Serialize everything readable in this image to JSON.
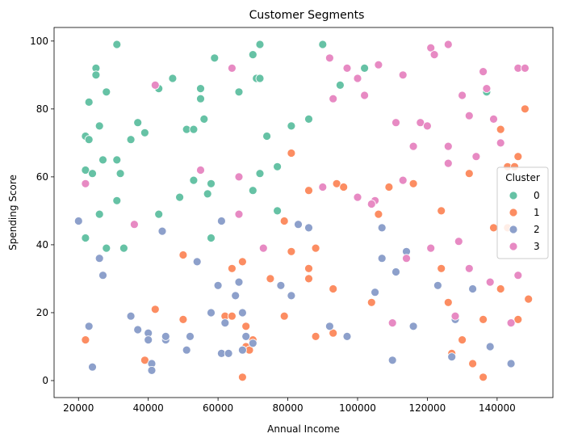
{
  "chart_data": {
    "type": "scatter",
    "title": "Customer Segments",
    "xlabel": "Annual Income",
    "ylabel": "Spending Score",
    "xlim": [
      13000,
      156000
    ],
    "ylim": [
      -5,
      104
    ],
    "xticks": [
      20000,
      40000,
      60000,
      80000,
      100000,
      120000,
      140000
    ],
    "xtick_labels": [
      "20000",
      "40000",
      "60000",
      "80000",
      "100000",
      "120000",
      "140000"
    ],
    "yticks": [
      0,
      20,
      40,
      60,
      80,
      100
    ],
    "ytick_labels": [
      "0",
      "20",
      "40",
      "60",
      "80",
      "100"
    ],
    "grid": false,
    "legend": {
      "title": "Cluster",
      "placement": "right",
      "entries": [
        "0",
        "1",
        "2",
        "3"
      ]
    },
    "series": [
      {
        "name": "0",
        "color": "#66c2a5",
        "points": [
          [
            31000,
            99
          ],
          [
            72000,
            99
          ],
          [
            90000,
            99
          ],
          [
            70000,
            96
          ],
          [
            59000,
            95
          ],
          [
            25000,
            92
          ],
          [
            25000,
            90
          ],
          [
            71000,
            89
          ],
          [
            72000,
            89
          ],
          [
            47000,
            89
          ],
          [
            43000,
            86
          ],
          [
            55000,
            86
          ],
          [
            95000,
            87
          ],
          [
            137000,
            85
          ],
          [
            28000,
            85
          ],
          [
            66000,
            85
          ],
          [
            55000,
            83
          ],
          [
            23000,
            82
          ],
          [
            56000,
            77
          ],
          [
            86000,
            77
          ],
          [
            37000,
            76
          ],
          [
            26000,
            75
          ],
          [
            81000,
            75
          ],
          [
            51000,
            74
          ],
          [
            53000,
            74
          ],
          [
            39000,
            73
          ],
          [
            22000,
            72
          ],
          [
            74000,
            72
          ],
          [
            35000,
            71
          ],
          [
            23000,
            71
          ],
          [
            27000,
            65
          ],
          [
            31000,
            65
          ],
          [
            77000,
            63
          ],
          [
            22000,
            62
          ],
          [
            24000,
            61
          ],
          [
            32000,
            61
          ],
          [
            72000,
            61
          ],
          [
            53000,
            59
          ],
          [
            58000,
            58
          ],
          [
            22000,
            58
          ],
          [
            70000,
            56
          ],
          [
            57000,
            55
          ],
          [
            49000,
            54
          ],
          [
            31000,
            53
          ],
          [
            77000,
            50
          ],
          [
            26000,
            49
          ],
          [
            43000,
            49
          ],
          [
            22000,
            42
          ],
          [
            58000,
            42
          ],
          [
            28000,
            39
          ],
          [
            33000,
            39
          ],
          [
            102000,
            92
          ]
        ]
      },
      {
        "name": "1",
        "color": "#fc8d62",
        "points": [
          [
            148000,
            80
          ],
          [
            141000,
            74
          ],
          [
            81000,
            67
          ],
          [
            146000,
            66
          ],
          [
            143000,
            63
          ],
          [
            145000,
            63
          ],
          [
            132000,
            61
          ],
          [
            94000,
            58
          ],
          [
            116000,
            58
          ],
          [
            96000,
            57
          ],
          [
            109000,
            57
          ],
          [
            86000,
            56
          ],
          [
            106000,
            49
          ],
          [
            124000,
            50
          ],
          [
            79000,
            47
          ],
          [
            139000,
            45
          ],
          [
            143000,
            45
          ],
          [
            88000,
            39
          ],
          [
            81000,
            38
          ],
          [
            50000,
            37
          ],
          [
            67000,
            35
          ],
          [
            64000,
            33
          ],
          [
            86000,
            33
          ],
          [
            124000,
            33
          ],
          [
            75000,
            30
          ],
          [
            86000,
            30
          ],
          [
            93000,
            27
          ],
          [
            141000,
            27
          ],
          [
            104000,
            23
          ],
          [
            126000,
            23
          ],
          [
            149000,
            24
          ],
          [
            42000,
            21
          ],
          [
            79000,
            19
          ],
          [
            62000,
            19
          ],
          [
            64000,
            19
          ],
          [
            50000,
            18
          ],
          [
            136000,
            18
          ],
          [
            146000,
            18
          ],
          [
            110000,
            17
          ],
          [
            68000,
            16
          ],
          [
            88000,
            13
          ],
          [
            93000,
            14
          ],
          [
            130000,
            12
          ],
          [
            22000,
            12
          ],
          [
            70000,
            12
          ],
          [
            68000,
            10
          ],
          [
            69000,
            9
          ],
          [
            127000,
            8
          ],
          [
            39000,
            6
          ],
          [
            133000,
            5
          ],
          [
            67000,
            1
          ],
          [
            136000,
            1
          ]
        ]
      },
      {
        "name": "2",
        "color": "#8da0cb",
        "points": [
          [
            20000,
            47
          ],
          [
            61000,
            47
          ],
          [
            83000,
            46
          ],
          [
            86000,
            45
          ],
          [
            107000,
            45
          ],
          [
            44000,
            44
          ],
          [
            114000,
            38
          ],
          [
            26000,
            36
          ],
          [
            54000,
            35
          ],
          [
            107000,
            36
          ],
          [
            111000,
            32
          ],
          [
            27000,
            31
          ],
          [
            66000,
            29
          ],
          [
            123000,
            28
          ],
          [
            60000,
            28
          ],
          [
            78000,
            28
          ],
          [
            133000,
            27
          ],
          [
            105000,
            26
          ],
          [
            65000,
            25
          ],
          [
            81000,
            25
          ],
          [
            58000,
            20
          ],
          [
            67000,
            20
          ],
          [
            35000,
            19
          ],
          [
            128000,
            18
          ],
          [
            62000,
            17
          ],
          [
            23000,
            16
          ],
          [
            92000,
            16
          ],
          [
            116000,
            16
          ],
          [
            37000,
            15
          ],
          [
            40000,
            14
          ],
          [
            45000,
            12
          ],
          [
            45000,
            13
          ],
          [
            52000,
            13
          ],
          [
            68000,
            13
          ],
          [
            97000,
            13
          ],
          [
            40000,
            12
          ],
          [
            70000,
            11
          ],
          [
            138000,
            10
          ],
          [
            51000,
            9
          ],
          [
            67000,
            9
          ],
          [
            61000,
            8
          ],
          [
            63000,
            8
          ],
          [
            127000,
            7
          ],
          [
            110000,
            6
          ],
          [
            41000,
            5
          ],
          [
            144000,
            5
          ],
          [
            24000,
            4
          ],
          [
            41000,
            3
          ]
        ]
      },
      {
        "name": "3",
        "color": "#e78ac3",
        "points": [
          [
            126000,
            99
          ],
          [
            121000,
            98
          ],
          [
            122000,
            96
          ],
          [
            92000,
            95
          ],
          [
            64000,
            92
          ],
          [
            97000,
            92
          ],
          [
            146000,
            92
          ],
          [
            148000,
            92
          ],
          [
            106000,
            93
          ],
          [
            136000,
            91
          ],
          [
            100000,
            89
          ],
          [
            113000,
            90
          ],
          [
            42000,
            87
          ],
          [
            137000,
            86
          ],
          [
            102000,
            84
          ],
          [
            130000,
            84
          ],
          [
            93000,
            83
          ],
          [
            132000,
            78
          ],
          [
            139000,
            77
          ],
          [
            111000,
            76
          ],
          [
            118000,
            76
          ],
          [
            120000,
            75
          ],
          [
            141000,
            70
          ],
          [
            116000,
            69
          ],
          [
            126000,
            69
          ],
          [
            134000,
            66
          ],
          [
            126000,
            64
          ],
          [
            55000,
            62
          ],
          [
            66000,
            60
          ],
          [
            113000,
            59
          ],
          [
            22000,
            58
          ],
          [
            90000,
            57
          ],
          [
            100000,
            54
          ],
          [
            105000,
            53
          ],
          [
            104000,
            52
          ],
          [
            66000,
            49
          ],
          [
            36000,
            46
          ],
          [
            121000,
            39
          ],
          [
            73000,
            39
          ],
          [
            129000,
            41
          ],
          [
            114000,
            36
          ],
          [
            132000,
            33
          ],
          [
            146000,
            31
          ],
          [
            138000,
            29
          ],
          [
            128000,
            19
          ],
          [
            110000,
            17
          ],
          [
            144000,
            17
          ]
        ]
      }
    ]
  }
}
